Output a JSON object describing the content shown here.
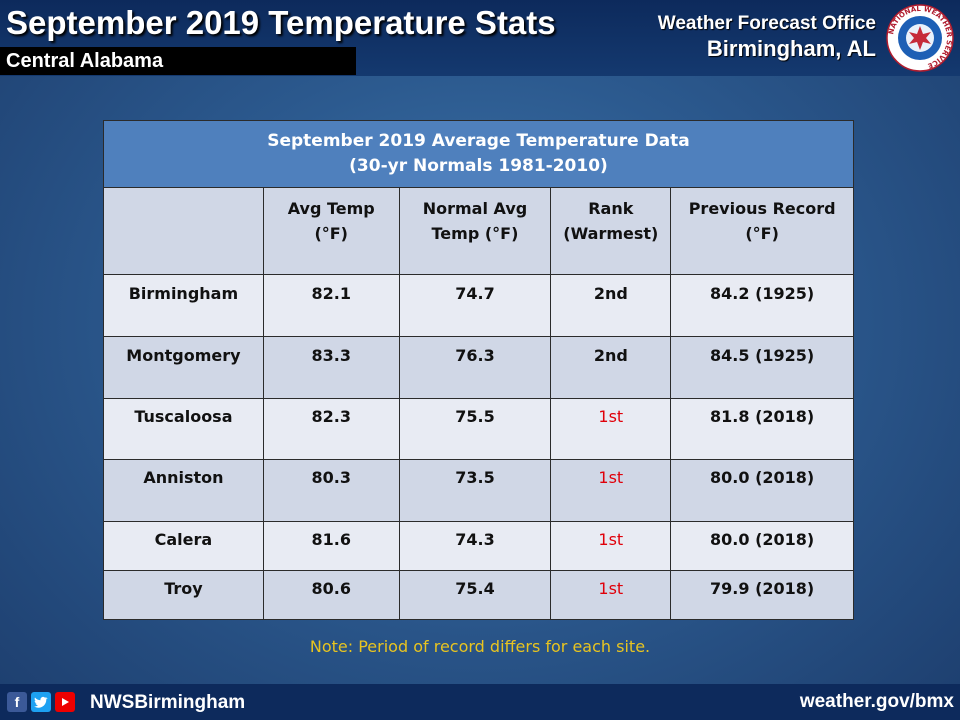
{
  "header": {
    "title": "September 2019 Temperature Stats",
    "subtitle": "Central Alabama",
    "office_line1": "Weather Forecast Office",
    "office_line2": "Birmingham, AL",
    "logo_icon": "nws-logo-icon",
    "logo_text": "NATIONAL WEATHER SERVICE"
  },
  "table": {
    "title_line1": "September 2019 Average Temperature Data",
    "title_line2": "(30-yr Normals 1981-2010)",
    "columns": [
      {
        "line1": "",
        "line2": ""
      },
      {
        "line1": "Avg Temp",
        "line2": "(°F)"
      },
      {
        "line1": "Normal Avg",
        "line2": "Temp (°F)"
      },
      {
        "line1": "Rank",
        "line2": "(Warmest)"
      },
      {
        "line1": "Previous Record",
        "line2": "(°F)"
      }
    ],
    "rows": [
      {
        "site": "Birmingham",
        "avg": "82.1",
        "normal": "74.7",
        "rank": "2nd",
        "record": "84.2 (1925)"
      },
      {
        "site": "Montgomery",
        "avg": "83.3",
        "normal": "76.3",
        "rank": "2nd",
        "record": "84.5 (1925)"
      },
      {
        "site": "Tuscaloosa",
        "avg": "82.3",
        "normal": "75.5",
        "rank": "1st",
        "record": "81.8 (2018)"
      },
      {
        "site": "Anniston",
        "avg": "80.3",
        "normal": "73.5",
        "rank": "1st",
        "record": "80.0 (2018)"
      },
      {
        "site": "Calera",
        "avg": "81.6",
        "normal": "74.3",
        "rank": "1st",
        "record": "80.0 (2018)"
      },
      {
        "site": "Troy",
        "avg": "80.6",
        "normal": "75.4",
        "rank": "1st",
        "record": "79.9 (2018)"
      }
    ],
    "record_rank_color": "#e0000a"
  },
  "note": "Note: Period of record differs for each site.",
  "footer": {
    "social_icons": [
      "facebook-icon",
      "twitter-icon",
      "youtube-icon"
    ],
    "handle": "NWSBirmingham",
    "url": "weather.gov/bmx"
  }
}
